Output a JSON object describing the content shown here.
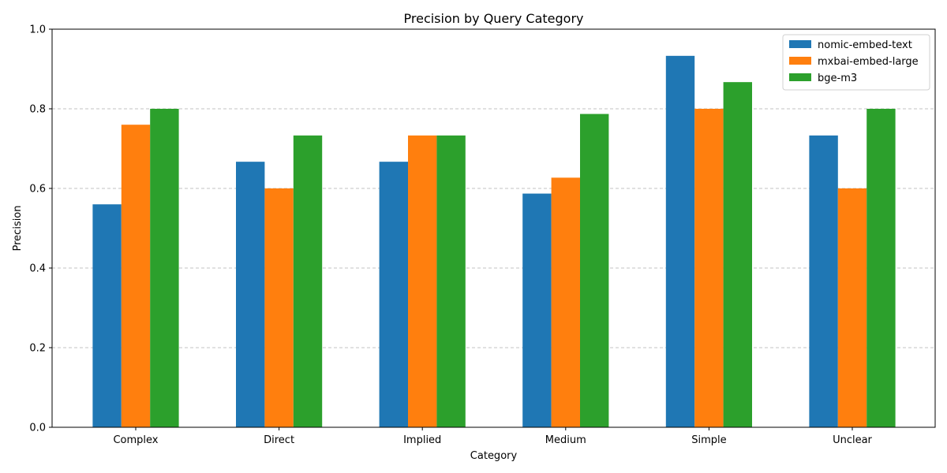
{
  "chart_data": {
    "type": "bar",
    "title": "Precision by Query Category",
    "xlabel": "Category",
    "ylabel": "Precision",
    "ylim": [
      0,
      1.0
    ],
    "yticks": [
      0.0,
      0.2,
      0.4,
      0.6,
      0.8,
      1.0
    ],
    "ytick_labels": [
      "0.0",
      "0.2",
      "0.4",
      "0.6",
      "0.8",
      "1.0"
    ],
    "grid": "y-dashed",
    "legend_position": "top-right",
    "categories": [
      "Complex",
      "Direct",
      "Implied",
      "Medium",
      "Simple",
      "Unclear"
    ],
    "series": [
      {
        "name": "nomic-embed-text",
        "color": "#1f77b4",
        "values": [
          0.56,
          0.667,
          0.667,
          0.587,
          0.933,
          0.733
        ]
      },
      {
        "name": "mxbai-embed-large",
        "color": "#ff7f0e",
        "values": [
          0.76,
          0.6,
          0.733,
          0.627,
          0.8,
          0.6
        ]
      },
      {
        "name": "bge-m3",
        "color": "#2ca02c",
        "values": [
          0.8,
          0.733,
          0.733,
          0.787,
          0.867,
          0.8
        ]
      }
    ]
  }
}
